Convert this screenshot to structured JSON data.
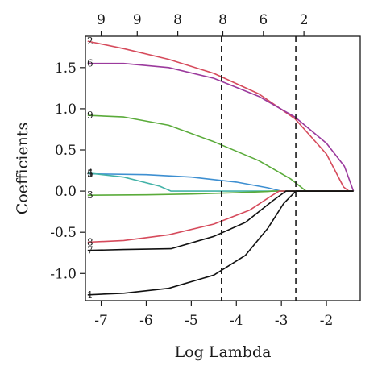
{
  "chart_data": {
    "type": "line",
    "xlabel": "Log Lambda",
    "ylabel": "Coefficients",
    "xlim": [
      -7.35,
      -1.25
    ],
    "ylim": [
      -1.33,
      1.88
    ],
    "x_ticks": [
      -7,
      -6,
      -5,
      -4,
      -3,
      -2
    ],
    "x_tick_labels": [
      "-7",
      "-6",
      "-5",
      "-4",
      "-3",
      "-2"
    ],
    "y_ticks": [
      -1.0,
      -0.5,
      0.0,
      0.5,
      1.0,
      1.5
    ],
    "y_tick_labels": [
      "-1.0",
      "-0.5",
      "0.0",
      "0.5",
      "1.0",
      "1.5"
    ],
    "top_ticks": [
      -7.0,
      -6.2,
      -5.3,
      -4.3,
      -3.4,
      -2.5
    ],
    "top_tick_labels": [
      "9",
      "9",
      "8",
      "8",
      "6",
      "2"
    ],
    "vlines": [
      -4.33,
      -2.68
    ],
    "grid": false,
    "series": [
      {
        "name": "2",
        "color": "#d64b5c",
        "points": [
          [
            -7.3,
            1.82
          ],
          [
            -6.5,
            1.73
          ],
          [
            -5.5,
            1.6
          ],
          [
            -4.5,
            1.43
          ],
          [
            -3.5,
            1.18
          ],
          [
            -2.7,
            0.88
          ],
          [
            -2.0,
            0.45
          ],
          [
            -1.62,
            0.05
          ],
          [
            -1.5,
            0.0
          ],
          [
            -1.4,
            0.0
          ]
        ]
      },
      {
        "name": "6",
        "color": "#9b3a9d",
        "points": [
          [
            -7.3,
            1.55
          ],
          [
            -6.5,
            1.55
          ],
          [
            -5.5,
            1.5
          ],
          [
            -4.5,
            1.37
          ],
          [
            -3.5,
            1.15
          ],
          [
            -2.7,
            0.9
          ],
          [
            -2.0,
            0.58
          ],
          [
            -1.6,
            0.3
          ],
          [
            -1.4,
            0.0
          ]
        ]
      },
      {
        "name": "9",
        "color": "#5aab3a",
        "points": [
          [
            -7.3,
            0.92
          ],
          [
            -6.5,
            0.9
          ],
          [
            -5.5,
            0.8
          ],
          [
            -4.5,
            0.6
          ],
          [
            -3.5,
            0.37
          ],
          [
            -2.8,
            0.15
          ],
          [
            -2.45,
            0.0
          ],
          [
            -1.4,
            0.0
          ]
        ]
      },
      {
        "name": "5",
        "color": "#3d8fd1",
        "points": [
          [
            -7.3,
            0.21
          ],
          [
            -6.0,
            0.2
          ],
          [
            -5.0,
            0.17
          ],
          [
            -4.0,
            0.11
          ],
          [
            -3.3,
            0.04
          ],
          [
            -3.0,
            0.0
          ],
          [
            -1.4,
            0.0
          ]
        ]
      },
      {
        "name": "4",
        "color": "#44b3a8",
        "points": [
          [
            -7.3,
            0.22
          ],
          [
            -6.5,
            0.17
          ],
          [
            -5.7,
            0.06
          ],
          [
            -5.45,
            0.0
          ],
          [
            -1.4,
            0.0
          ]
        ]
      },
      {
        "name": "3",
        "color": "#5aab3a",
        "points": [
          [
            -7.3,
            -0.05
          ],
          [
            -6.0,
            -0.045
          ],
          [
            -5.0,
            -0.035
          ],
          [
            -4.0,
            -0.02
          ],
          [
            -3.3,
            -0.005
          ],
          [
            -3.2,
            0.0
          ],
          [
            -1.4,
            0.0
          ]
        ]
      },
      {
        "name": "8",
        "color": "#d64b5c",
        "points": [
          [
            -7.3,
            -0.62
          ],
          [
            -6.5,
            -0.6
          ],
          [
            -5.5,
            -0.53
          ],
          [
            -4.5,
            -0.4
          ],
          [
            -3.7,
            -0.23
          ],
          [
            -3.2,
            -0.05
          ],
          [
            -3.05,
            0.0
          ],
          [
            -1.4,
            0.0
          ]
        ]
      },
      {
        "name": "7",
        "color": "#111111",
        "points": [
          [
            -7.3,
            -0.72
          ],
          [
            -6.5,
            -0.71
          ],
          [
            -5.45,
            -0.7
          ],
          [
            -4.5,
            -0.55
          ],
          [
            -3.8,
            -0.38
          ],
          [
            -3.2,
            -0.12
          ],
          [
            -2.9,
            0.0
          ],
          [
            -1.4,
            0.0
          ]
        ]
      },
      {
        "name": "1",
        "color": "#111111",
        "points": [
          [
            -7.3,
            -1.26
          ],
          [
            -6.5,
            -1.24
          ],
          [
            -5.5,
            -1.18
          ],
          [
            -4.5,
            -1.02
          ],
          [
            -3.8,
            -0.78
          ],
          [
            -3.3,
            -0.45
          ],
          [
            -2.95,
            -0.15
          ],
          [
            -2.68,
            0.0
          ],
          [
            -1.4,
            0.0
          ]
        ]
      }
    ]
  }
}
